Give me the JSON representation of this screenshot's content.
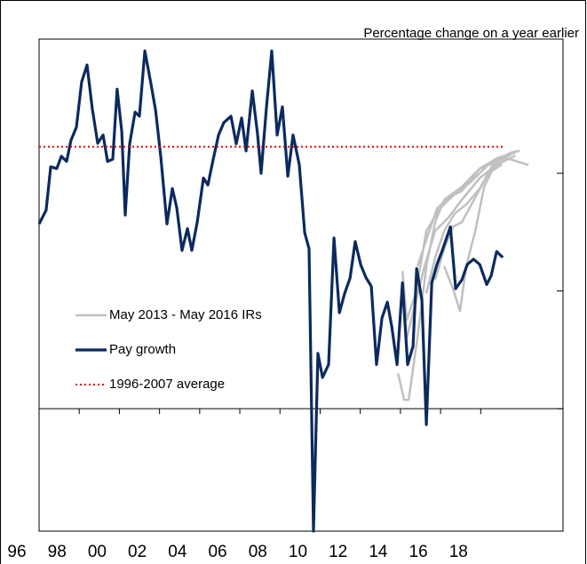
{
  "chart_data": {
    "type": "line",
    "annotation": "Percentage change on a year earlier",
    "xlim": [
      1996,
      2022.1
    ],
    "ylim": [
      -2.08,
      6.28
    ],
    "yticks": [
      0,
      2,
      4
    ],
    "xticks": [
      {
        "value": 1996,
        "label": "96"
      },
      {
        "value": 1998,
        "label": "98"
      },
      {
        "value": 2000,
        "label": "00"
      },
      {
        "value": 2002,
        "label": "02"
      },
      {
        "value": 2004,
        "label": "04"
      },
      {
        "value": 2006,
        "label": "06"
      },
      {
        "value": 2008,
        "label": "08"
      },
      {
        "value": 2010,
        "label": "10"
      },
      {
        "value": 2012,
        "label": "12"
      },
      {
        "value": 2014,
        "label": "14"
      },
      {
        "value": 2016,
        "label": "16"
      },
      {
        "value": 2018,
        "label": "18"
      }
    ],
    "legend_position": "left",
    "series": [
      {
        "name": "May 2013 - May 2016 IRs",
        "color": "#c0c0c0",
        "width": 2.5,
        "dash": "none",
        "x": [
          2013.88,
          2014.19,
          2014.41,
          2014.85,
          2015.29,
          2015.73,
          2016.18,
          2017.06,
          2017.95,
          2018.83,
          2019.72,
          null,
          2014.1,
          2014.32,
          2014.76,
          2015.29,
          2015.96,
          2016.62,
          2017.5,
          2018.39,
          2019.5,
          2019.94,
          null,
          2014.32,
          2014.76,
          2015.2,
          2015.73,
          2016.4,
          2017.06,
          2017.95,
          2018.83,
          2019.72,
          null,
          2014.85,
          2015.29,
          2015.82,
          2016.4,
          2017.06,
          2017.95,
          2019.27,
          2020.38,
          null,
          2015.29,
          2015.73,
          2016.18,
          2016.71,
          2017.28,
          2017.95,
          2018.61,
          2019.5,
          null,
          2015.73,
          2016.18,
          2016.62,
          2017.06,
          2017.73,
          2018.39,
          2019.05,
          null,
          2016.18,
          2016.62,
          2016.97,
          2017.28,
          2017.73,
          2018.17,
          2018.83
        ],
        "values": [
          0.6,
          0.15,
          0.15,
          1.21,
          2.42,
          3.17,
          3.55,
          3.77,
          4.08,
          4.26,
          4.35,
          null,
          2.34,
          1.51,
          1.96,
          3.02,
          3.4,
          3.62,
          3.85,
          4.15,
          4.35,
          4.38,
          null,
          1.21,
          1.81,
          2.42,
          3.02,
          3.25,
          3.55,
          3.92,
          4.15,
          4.3,
          null,
          2.42,
          2.87,
          3.4,
          3.59,
          3.7,
          4.08,
          4.26,
          4.14,
          null,
          1.96,
          2.57,
          3.02,
          3.32,
          3.47,
          3.74,
          4.15,
          4.32,
          null,
          2.19,
          2.72,
          3.09,
          3.17,
          3.59,
          4.0,
          4.15,
          null,
          2.42,
          2.04,
          1.66,
          2.42,
          3.02,
          3.77,
          4.23
        ]
      },
      {
        "name": "Pay growth",
        "color": "#0b2a5e",
        "width": 3.2,
        "dash": "none",
        "x": [
          1996.0,
          1996.35,
          1996.58,
          1996.88,
          1997.11,
          1997.37,
          1997.59,
          1997.86,
          1998.12,
          1998.39,
          1998.65,
          1998.92,
          1999.19,
          1999.41,
          1999.67,
          1999.89,
          2000.12,
          2000.29,
          2000.51,
          2000.78,
          2001.0,
          2001.27,
          2001.58,
          2001.81,
          2002.07,
          2002.37,
          2002.64,
          2002.86,
          2003.12,
          2003.39,
          2003.61,
          2003.88,
          2004.19,
          2004.41,
          2004.67,
          2004.94,
          2005.2,
          2005.56,
          2005.82,
          2006.09,
          2006.31,
          2006.62,
          2006.88,
          2007.06,
          2007.33,
          2007.59,
          2007.86,
          2008.12,
          2008.39,
          2008.65,
          2008.96,
          2009.23,
          2009.45,
          2009.67,
          2009.89,
          2010.12,
          2010.42,
          2010.69,
          2010.96,
          2011.22,
          2011.49,
          2011.75,
          2012.02,
          2012.28,
          2012.55,
          2012.81,
          2013.08,
          2013.35,
          2013.57,
          2013.83,
          2014.1,
          2014.36,
          2014.63,
          2014.81,
          2015.07,
          2015.29,
          2015.56,
          2015.82,
          2016.09,
          2016.49,
          2016.75,
          2017.06,
          2017.33,
          2017.64,
          2017.95,
          2018.3,
          2018.52,
          2018.79,
          2019.1
        ],
        "values": [
          3.14,
          3.37,
          4.11,
          4.08,
          4.29,
          4.2,
          4.56,
          4.78,
          5.55,
          5.84,
          5.1,
          4.51,
          4.65,
          4.2,
          4.24,
          5.43,
          4.71,
          3.29,
          4.5,
          5.04,
          4.97,
          6.08,
          5.51,
          5.06,
          4.26,
          3.14,
          3.74,
          3.41,
          2.69,
          3.06,
          2.69,
          3.17,
          3.92,
          3.8,
          4.23,
          4.65,
          4.86,
          4.97,
          4.5,
          4.94,
          4.38,
          5.4,
          4.68,
          4.0,
          5.13,
          6.08,
          4.65,
          5.13,
          3.95,
          4.65,
          4.15,
          2.99,
          2.72,
          -2.08,
          0.94,
          0.53,
          0.75,
          2.9,
          1.63,
          1.96,
          2.22,
          2.84,
          2.45,
          2.23,
          2.08,
          0.75,
          1.54,
          1.81,
          1.39,
          0.75,
          2.14,
          0.75,
          1.06,
          2.38,
          1.84,
          -0.27,
          2.14,
          2.45,
          2.69,
          3.09,
          2.04,
          2.19,
          2.45,
          2.54,
          2.45,
          2.11,
          2.26,
          2.67,
          2.57
        ]
      },
      {
        "name": "1996-2007 average",
        "color": "#e00000",
        "width": 2,
        "dash": "2,3",
        "x": [
          1996,
          2019.1
        ],
        "values": [
          4.45,
          4.45
        ]
      }
    ]
  }
}
